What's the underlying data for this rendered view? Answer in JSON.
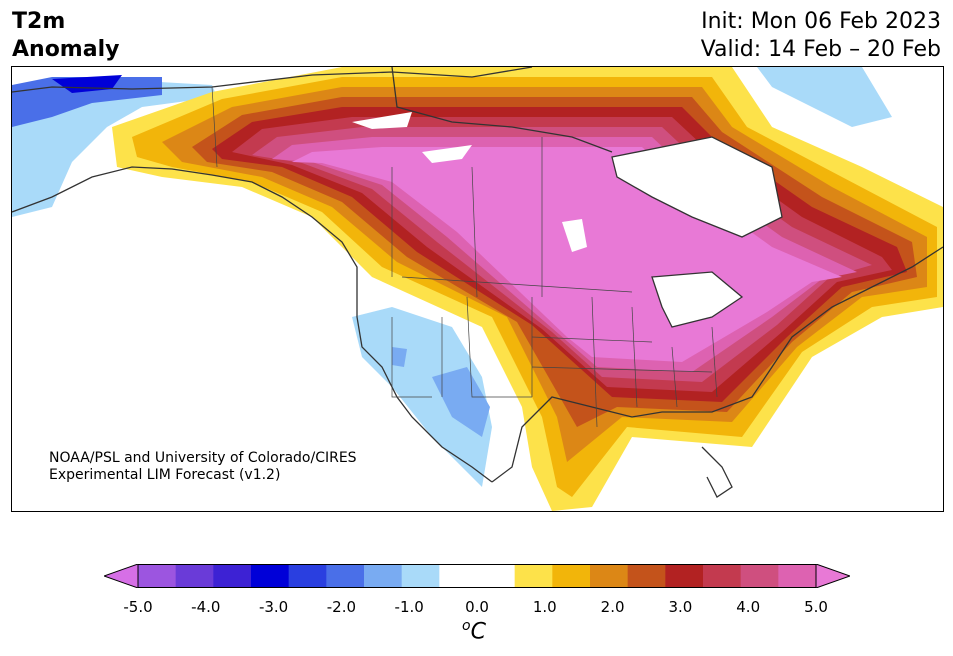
{
  "title": {
    "line1": "T2m",
    "line2": "Anomaly"
  },
  "dates": {
    "init": "Init: Mon 06 Feb 2023",
    "valid": "Valid: 14 Feb – 20 Feb"
  },
  "credit": {
    "line1": "NOAA/PSL and University of Colorado/CIRES",
    "line2": "Experimental LIM Forecast (v1.2)"
  },
  "colorbar": {
    "ticks": [
      "-5.0",
      "-4.0",
      "-3.0",
      "-2.0",
      "-1.0",
      "0.0",
      "1.0",
      "2.0",
      "3.0",
      "4.0",
      "5.0"
    ],
    "colors": [
      "#d66fe6",
      "#9c55e0",
      "#6a3bd8",
      "#3d22d4",
      "#0000d8",
      "#2a3fe0",
      "#4a6fe8",
      "#79abf2",
      "#a9daf9",
      "#ffffff",
      "#ffffff",
      "#fde24a",
      "#f2b50a",
      "#dc8716",
      "#c4531b",
      "#b22222",
      "#c33a4f",
      "#cf4f7f",
      "#dd62b1",
      "#e879d6"
    ],
    "unit_base": "C",
    "unit_sup": "o"
  }
}
